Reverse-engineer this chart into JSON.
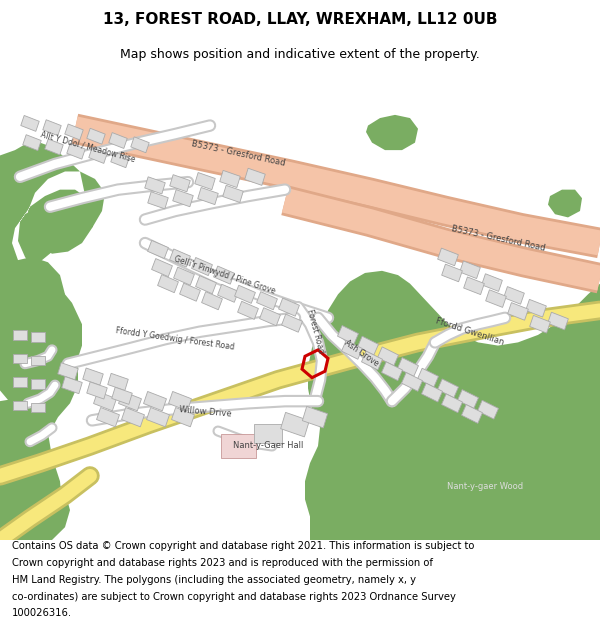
{
  "title": "13, FOREST ROAD, LLAY, WREXHAM, LL12 0UB",
  "subtitle": "Map shows position and indicative extent of the property.",
  "footer": "Contains OS data © Crown copyright and database right 2021. This information is subject to Crown copyright and database rights 2023 and is reproduced with the permission of HM Land Registry. The polygons (including the associated geometry, namely x, y co-ordinates) are subject to Crown copyright and database rights 2023 Ordnance Survey 100026316.",
  "bg_color": "#ffffff",
  "map_bg": "#f2f2f2",
  "road_major_color": "#f5c4a8",
  "road_major_edge": "#e0a888",
  "green_color": "#7aad62",
  "building_color": "#dedede",
  "building_edge": "#aaaaaa",
  "road_yellow_color": "#f7e87c",
  "road_yellow_edge": "#c8c060",
  "highlight_color": "#cc0000",
  "white_road": "#ffffff",
  "white_road_edge": "#c8c8c8",
  "title_fontsize": 11,
  "subtitle_fontsize": 9,
  "footer_fontsize": 7.2
}
